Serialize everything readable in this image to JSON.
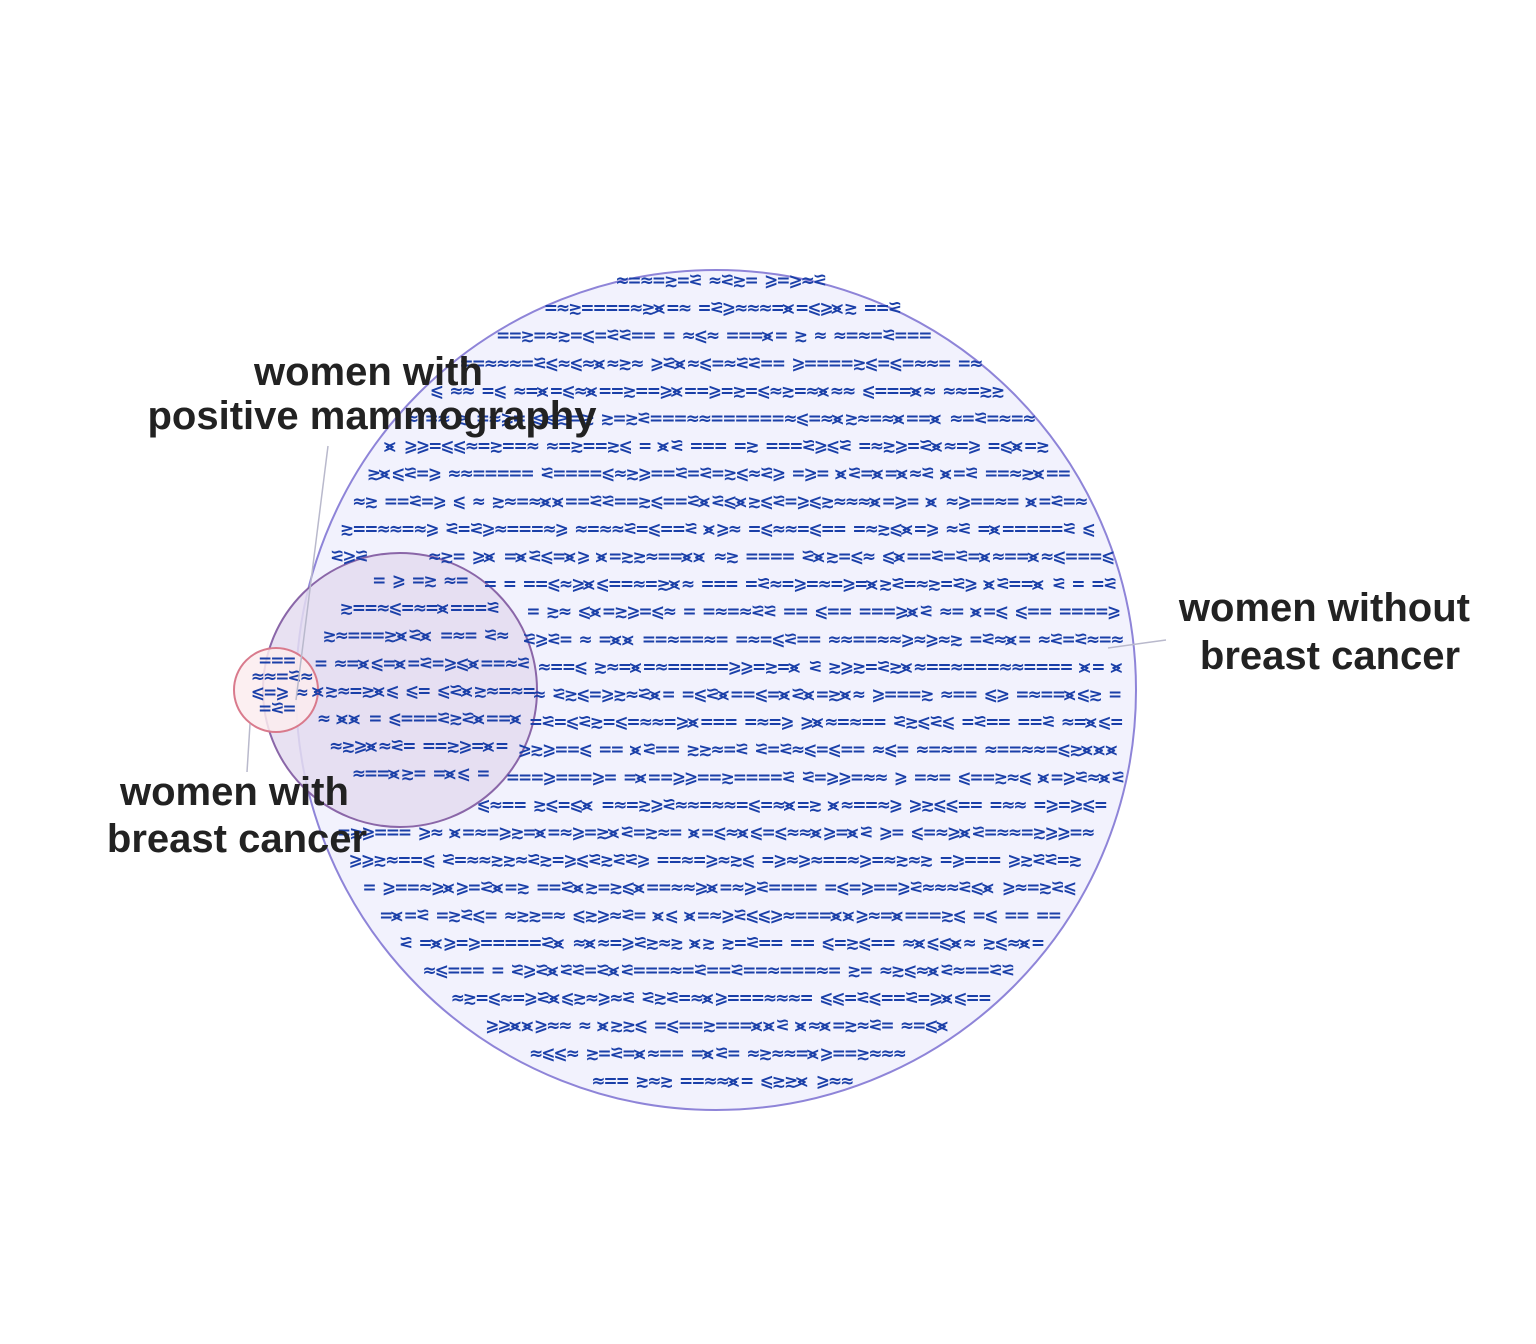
{
  "diagram": {
    "type": "proportional-venn",
    "sets": [
      {
        "id": "without_cancer",
        "label_lines": [
          "women without",
          "breast cancer"
        ],
        "fill": "#f2f2fd",
        "stroke": "#8e84d8"
      },
      {
        "id": "positive_mammography",
        "label_lines": [
          "women with",
          "positive mammography"
        ],
        "fill": "#e4dcf0",
        "stroke": "#8a66a8"
      },
      {
        "id": "with_cancer",
        "label_lines": [
          "women with",
          "breast cancer"
        ],
        "fill": "#fcecee",
        "stroke": "#d97a8c"
      }
    ],
    "marker_color": "#1a3fa8",
    "marker_glyphs": [
      "=",
      "=",
      "=",
      "=",
      "≈",
      "≈",
      "≳",
      "⪝",
      "⪤",
      "⩽",
      "⩾"
    ]
  }
}
